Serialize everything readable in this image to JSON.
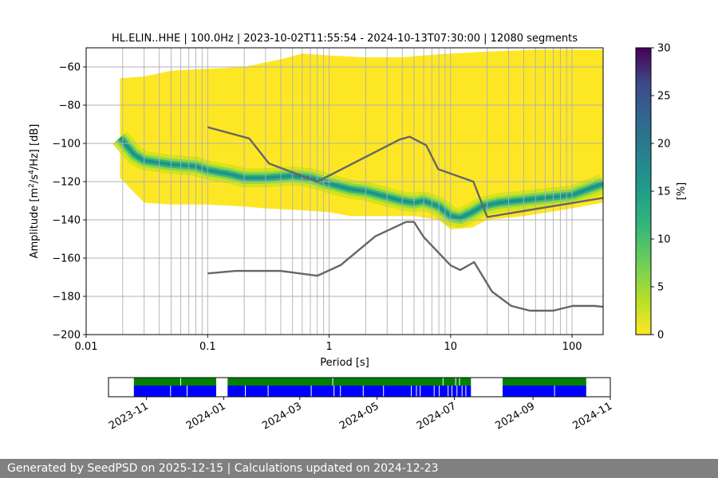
{
  "footer": {
    "text": "Generated by SeedPSD on 2025-12-15 | Calculations updated on 2024-12-23"
  },
  "chart_data": [
    {
      "type": "heatmap",
      "title": "HL.ELIN..HHE | 100.0Hz | 2023-10-02T11:55:54 - 2024-10-13T07:30:00 | 12080 segments",
      "xlabel": "Period [s]",
      "ylabel_parts": [
        "Amplitude [m",
        "2",
        "/s",
        "4",
        "/Hz] [dB]"
      ],
      "xscale": "log",
      "xlim": [
        0.01,
        180
      ],
      "ylim": [
        -200,
        -50
      ],
      "xticks": [
        {
          "value": 0.01,
          "label": "0.01"
        },
        {
          "value": 0.1,
          "label": "0.1"
        },
        {
          "value": 1,
          "label": "1"
        },
        {
          "value": 10,
          "label": "10"
        },
        {
          "value": 100,
          "label": "100"
        }
      ],
      "yticks": [
        {
          "value": -60,
          "label": "−60"
        },
        {
          "value": -80,
          "label": "−80"
        },
        {
          "value": -100,
          "label": "−100"
        },
        {
          "value": -120,
          "label": "−120"
        },
        {
          "value": -140,
          "label": "−140"
        },
        {
          "value": -160,
          "label": "−160"
        },
        {
          "value": -180,
          "label": "−180"
        },
        {
          "value": -200,
          "label": "−200"
        }
      ],
      "grid": true,
      "colormap": "viridis_r",
      "colorbar": {
        "label": "[%]",
        "range": [
          0,
          30
        ],
        "ticks": [
          {
            "value": 0,
            "label": "0"
          },
          {
            "value": 5,
            "label": "5"
          },
          {
            "value": 10,
            "label": "10"
          },
          {
            "value": 15,
            "label": "15"
          },
          {
            "value": 20,
            "label": "20"
          },
          {
            "value": 25,
            "label": "25"
          },
          {
            "value": 30,
            "label": "30"
          }
        ]
      },
      "vertical_grid_periods": [
        0.02,
        0.03,
        0.04,
        0.05,
        0.06,
        0.07,
        0.08,
        0.09,
        0.1,
        0.2,
        0.3,
        0.4,
        0.5,
        0.6,
        0.7,
        0.8,
        0.9,
        1,
        2,
        3,
        4,
        5,
        6,
        7,
        8,
        9,
        10,
        20,
        30,
        40,
        50,
        60,
        70,
        80,
        90,
        100
      ],
      "mode_curve": {
        "x": [
          0.019,
          0.025,
          0.03,
          0.05,
          0.08,
          0.1,
          0.15,
          0.2,
          0.3,
          0.5,
          0.7,
          1,
          1.5,
          2,
          3,
          4,
          5,
          6,
          8,
          10,
          12,
          15,
          18,
          25,
          50,
          100,
          180
        ],
        "y": [
          -97,
          -106,
          -109,
          -111,
          -112,
          -114,
          -116,
          -118,
          -118,
          -117,
          -118,
          -121,
          -124,
          -125,
          -128,
          -130,
          -131,
          -130,
          -133,
          -138,
          -139,
          -136,
          -133,
          -131,
          -129,
          -127,
          -121
        ]
      },
      "band_upper": {
        "x": [
          0.019,
          0.03,
          0.05,
          0.1,
          0.2,
          0.4,
          0.6,
          1,
          2,
          4,
          6,
          10,
          20,
          50,
          100,
          180
        ],
        "y": [
          -66,
          -65,
          -62,
          -61,
          -60,
          -56,
          -53,
          -54,
          -55,
          -55,
          -54,
          -53,
          -52,
          -51,
          -51,
          -51
        ]
      },
      "band_lower": {
        "x": [
          0.019,
          0.03,
          0.05,
          0.1,
          0.2,
          0.3,
          0.6,
          1,
          1.5,
          3,
          5,
          8,
          10,
          15,
          20,
          40,
          80,
          180
        ],
        "y": [
          -118,
          -131,
          -132,
          -132,
          -133,
          -134,
          -135,
          -136,
          -138,
          -138,
          -138,
          -140,
          -145,
          -144,
          -140,
          -138,
          -135,
          -131
        ]
      },
      "nhnm": {
        "x": [
          0.1,
          0.22,
          0.32,
          0.8,
          3.8,
          4.6,
          6.3,
          7.9,
          15.4,
          20,
          180
        ],
        "y": [
          -91.5,
          -97.4,
          -110.5,
          -120,
          -98,
          -96.5,
          -101,
          -113.5,
          -120,
          -138.5,
          -128.5
        ]
      },
      "nlnm": {
        "x": [
          0.1,
          0.17,
          0.4,
          0.8,
          1.24,
          2.4,
          4.3,
          5,
          6,
          10,
          12,
          15.6,
          21.9,
          31.6,
          45,
          70,
          101,
          154,
          180
        ],
        "y": [
          -168,
          -166.7,
          -166.7,
          -169.2,
          -163.7,
          -148.6,
          -141.1,
          -141.1,
          -149,
          -163.8,
          -166.2,
          -162.1,
          -177.5,
          -185,
          -187.5,
          -187.5,
          -185,
          -185,
          -185.5
        ]
      }
    },
    {
      "type": "timeline",
      "xlabel": "",
      "ylabel": "",
      "xlim": [
        "2023-10-02",
        "2024-11-01"
      ],
      "xticks": [
        "2023-11",
        "2024-01",
        "2024-03",
        "2024-05",
        "2024-07",
        "2024-09",
        "2024-11"
      ],
      "top_color": "#008000",
      "bottom_color": "#0000ff",
      "coverage_segments": [
        {
          "start": "2023-10-22",
          "end": "2023-12-26"
        },
        {
          "start": "2024-01-04",
          "end": "2024-07-14"
        },
        {
          "start": "2024-08-08",
          "end": "2024-10-13"
        }
      ],
      "gap_dates_bottom": [
        "2023-11-20",
        "2023-12-03",
        "2024-01-18",
        "2024-02-05",
        "2024-03-10",
        "2024-03-28",
        "2024-04-02",
        "2024-04-20",
        "2024-05-06",
        "2024-05-28",
        "2024-06-01",
        "2024-06-04",
        "2024-06-15",
        "2024-06-19",
        "2024-06-26",
        "2024-06-29",
        "2024-07-03",
        "2024-07-07",
        "2024-07-10",
        "2024-09-18"
      ],
      "gap_dates_top": [
        "2023-11-28",
        "2024-03-27",
        "2024-06-22",
        "2024-07-02",
        "2024-07-05"
      ]
    }
  ]
}
